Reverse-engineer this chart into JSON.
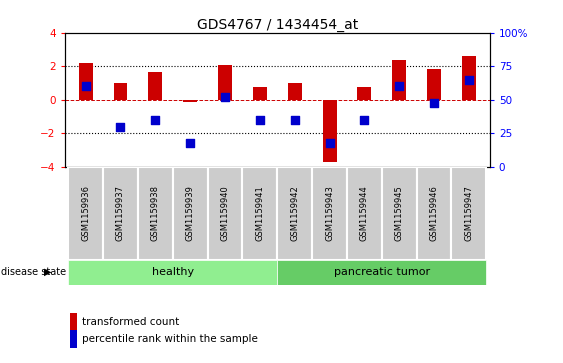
{
  "title": "GDS4767 / 1434454_at",
  "samples": [
    "GSM1159936",
    "GSM1159937",
    "GSM1159938",
    "GSM1159939",
    "GSM1159940",
    "GSM1159941",
    "GSM1159942",
    "GSM1159943",
    "GSM1159944",
    "GSM1159945",
    "GSM1159946",
    "GSM1159947"
  ],
  "red_values": [
    2.2,
    1.0,
    1.65,
    -0.15,
    2.1,
    0.75,
    1.0,
    -3.7,
    0.75,
    2.4,
    1.85,
    2.6
  ],
  "blue_percentiles": [
    60,
    30,
    35,
    18,
    52,
    35,
    35,
    18,
    35,
    60,
    48,
    65
  ],
  "ylim_left": [
    -4,
    4
  ],
  "ylim_right": [
    0,
    100
  ],
  "yticks_left": [
    -4,
    -2,
    0,
    2,
    4
  ],
  "yticks_right": [
    0,
    25,
    50,
    75,
    100
  ],
  "healthy_color": "#90ee90",
  "tumor_color": "#66cc66",
  "label_box_color": "#cccccc",
  "bar_color": "#cc0000",
  "dot_color": "#0000cc",
  "bg_color": "#ffffff",
  "zero_line_color": "#cc0000",
  "bar_width": 0.4,
  "dot_size": 30,
  "title_fontsize": 10,
  "tick_fontsize": 7.5,
  "label_fontsize": 6,
  "group_fontsize": 8,
  "legend_fontsize": 7.5
}
